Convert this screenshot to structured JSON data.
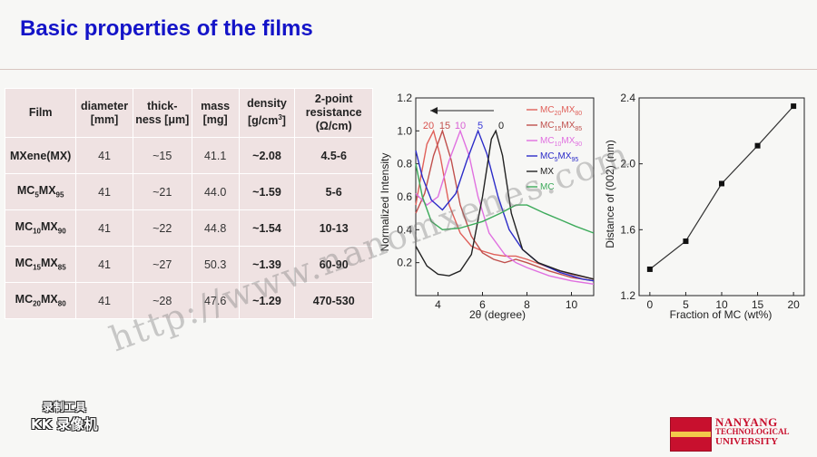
{
  "slide": {
    "title": "Basic properties of the films"
  },
  "table": {
    "headers": [
      {
        "l1": "Film",
        "l2": ""
      },
      {
        "l1": "diameter",
        "l2": "[mm]"
      },
      {
        "l1": "thick-",
        "l2": "ness [μm]"
      },
      {
        "l1": "mass",
        "l2": "[mg]"
      },
      {
        "l1": "density",
        "l2": "[g/cm",
        "sup": "3",
        "l2b": "]"
      },
      {
        "l1": "2-point",
        "l2": "resistance",
        "l3": "(Ω/cm)"
      }
    ],
    "rows": [
      {
        "film": "MXene(MX)",
        "diameter": "41",
        "thickness": "~15",
        "mass": "41.1",
        "density": "~2.08",
        "resistance": "4.5-6"
      },
      {
        "film": "MC5MX95",
        "film_base1": "MC",
        "film_sub1": "5",
        "film_base2": "MX",
        "film_sub2": "95",
        "diameter": "41",
        "thickness": "~21",
        "mass": "44.0",
        "density": "~1.59",
        "resistance": "5-6"
      },
      {
        "film": "MC10MX90",
        "film_base1": "MC",
        "film_sub1": "10",
        "film_base2": "MX",
        "film_sub2": "90",
        "diameter": "41",
        "thickness": "~22",
        "mass": "44.8",
        "density": "~1.54",
        "resistance": "10-13"
      },
      {
        "film": "MC15MX85",
        "film_base1": "MC",
        "film_sub1": "15",
        "film_base2": "MX",
        "film_sub2": "85",
        "diameter": "41",
        "thickness": "~27",
        "mass": "50.3",
        "density": "~1.39",
        "resistance": "60-90"
      },
      {
        "film": "MC20MX80",
        "film_base1": "MC",
        "film_sub1": "20",
        "film_base2": "MX",
        "film_sub2": "80",
        "diameter": "41",
        "thickness": "~28",
        "mass": "47.6",
        "density": "~1.29",
        "resistance": "470-530"
      }
    ]
  },
  "chart_data": [
    {
      "type": "line",
      "xlabel": "2θ (degree)",
      "ylabel": "Normalized Intensity",
      "xlim": [
        3,
        11
      ],
      "ylim": [
        0,
        1.2
      ],
      "xticks": [
        "4",
        "6",
        "8",
        "10"
      ],
      "yticks": [
        "0.2",
        "0.4",
        "0.6",
        "0.8",
        "1.0",
        "1.2"
      ],
      "peak_labels": [
        {
          "text": "20",
          "x": 3.7,
          "color": "#d9534f"
        },
        {
          "text": "15",
          "x": 4.3,
          "color": "#c0504d"
        },
        {
          "text": "10",
          "x": 5.0,
          "color": "#d95fd4"
        },
        {
          "text": "5",
          "x": 5.8,
          "color": "#3a3ad8"
        },
        {
          "text": "0",
          "x": 6.6,
          "color": "#222222"
        }
      ],
      "series": [
        {
          "name": "MC20MX80",
          "base": "MC",
          "sub1": "20",
          "base2": "MX",
          "sub2": "80",
          "color": "#e0605a",
          "points": [
            [
              3.0,
              0.55
            ],
            [
              3.2,
              0.7
            ],
            [
              3.5,
              0.92
            ],
            [
              3.8,
              1.0
            ],
            [
              4.1,
              0.85
            ],
            [
              4.5,
              0.55
            ],
            [
              5.0,
              0.38
            ],
            [
              5.5,
              0.3
            ],
            [
              6.0,
              0.27
            ],
            [
              6.5,
              0.25
            ],
            [
              7.0,
              0.24
            ],
            [
              7.5,
              0.24
            ],
            [
              8.0,
              0.22
            ],
            [
              9.0,
              0.17
            ],
            [
              10.0,
              0.13
            ],
            [
              11.0,
              0.1
            ]
          ]
        },
        {
          "name": "MC15MX85",
          "base": "MC",
          "sub1": "15",
          "base2": "MX",
          "sub2": "85",
          "color": "#c0504d",
          "points": [
            [
              3.0,
              0.5
            ],
            [
              3.4,
              0.62
            ],
            [
              3.8,
              0.85
            ],
            [
              4.2,
              1.0
            ],
            [
              4.6,
              0.82
            ],
            [
              5.0,
              0.55
            ],
            [
              5.5,
              0.36
            ],
            [
              6.0,
              0.26
            ],
            [
              6.5,
              0.22
            ],
            [
              7.0,
              0.2
            ],
            [
              7.5,
              0.22
            ],
            [
              8.0,
              0.2
            ],
            [
              9.0,
              0.15
            ],
            [
              10.0,
              0.11
            ],
            [
              11.0,
              0.09
            ]
          ]
        },
        {
          "name": "MC10MX90",
          "base": "MC",
          "sub1": "10",
          "base2": "MX",
          "sub2": "90",
          "color": "#e070e0",
          "points": [
            [
              3.0,
              0.62
            ],
            [
              3.5,
              0.55
            ],
            [
              4.0,
              0.6
            ],
            [
              4.5,
              0.82
            ],
            [
              5.0,
              1.0
            ],
            [
              5.4,
              0.85
            ],
            [
              5.8,
              0.6
            ],
            [
              6.3,
              0.38
            ],
            [
              7.0,
              0.25
            ],
            [
              7.5,
              0.2
            ],
            [
              8.0,
              0.17
            ],
            [
              9.0,
              0.12
            ],
            [
              10.0,
              0.09
            ],
            [
              11.0,
              0.07
            ]
          ]
        },
        {
          "name": "MC5MX95",
          "base": "MC",
          "sub1": "5",
          "base2": "MX",
          "sub2": "95",
          "color": "#2c2cc8",
          "points": [
            [
              3.0,
              0.88
            ],
            [
              3.3,
              0.72
            ],
            [
              3.7,
              0.58
            ],
            [
              4.2,
              0.52
            ],
            [
              4.8,
              0.62
            ],
            [
              5.3,
              0.82
            ],
            [
              5.8,
              1.0
            ],
            [
              6.2,
              0.86
            ],
            [
              6.7,
              0.6
            ],
            [
              7.2,
              0.4
            ],
            [
              7.8,
              0.28
            ],
            [
              8.5,
              0.2
            ],
            [
              9.5,
              0.14
            ],
            [
              10.5,
              0.1
            ],
            [
              11.0,
              0.09
            ]
          ]
        },
        {
          "name": "MX",
          "color": "#222222",
          "points": [
            [
              3.0,
              0.3
            ],
            [
              3.5,
              0.18
            ],
            [
              4.0,
              0.13
            ],
            [
              4.5,
              0.12
            ],
            [
              5.0,
              0.15
            ],
            [
              5.5,
              0.25
            ],
            [
              6.0,
              0.6
            ],
            [
              6.4,
              0.95
            ],
            [
              6.6,
              1.0
            ],
            [
              6.9,
              0.85
            ],
            [
              7.3,
              0.5
            ],
            [
              7.8,
              0.28
            ],
            [
              8.5,
              0.2
            ],
            [
              9.5,
              0.15
            ],
            [
              11.0,
              0.1
            ]
          ]
        },
        {
          "name": "MC",
          "color": "#3caa5a",
          "points": [
            [
              3.0,
              0.8
            ],
            [
              3.3,
              0.6
            ],
            [
              3.7,
              0.45
            ],
            [
              4.2,
              0.4
            ],
            [
              5.0,
              0.41
            ],
            [
              6.0,
              0.45
            ],
            [
              6.8,
              0.5
            ],
            [
              7.5,
              0.55
            ],
            [
              8.0,
              0.55
            ],
            [
              8.8,
              0.5
            ],
            [
              9.5,
              0.46
            ],
            [
              10.2,
              0.42
            ],
            [
              11.0,
              0.38
            ]
          ]
        }
      ]
    },
    {
      "type": "line",
      "xlabel": "Fraction of MC (wt%)",
      "ylabel": "Distance of (002) (nm)",
      "xlim": [
        -1.5,
        21.5
      ],
      "ylim": [
        1.2,
        2.4
      ],
      "xticks": [
        "0",
        "5",
        "10",
        "15",
        "20"
      ],
      "yticks": [
        "1.2",
        "1.6",
        "2.0",
        "2.4"
      ],
      "x": [
        0,
        5,
        10,
        15,
        20
      ],
      "y": [
        1.36,
        1.53,
        1.88,
        2.11,
        2.35
      ]
    }
  ],
  "watermark": "http://www.nanomxenes.com",
  "recorder_logo": {
    "line1": "录制工具",
    "line2": "KK 录像机"
  },
  "institution": {
    "line1": "NANYANG",
    "line2": "TECHNOLOGICAL",
    "line3": "UNIVERSITY"
  }
}
